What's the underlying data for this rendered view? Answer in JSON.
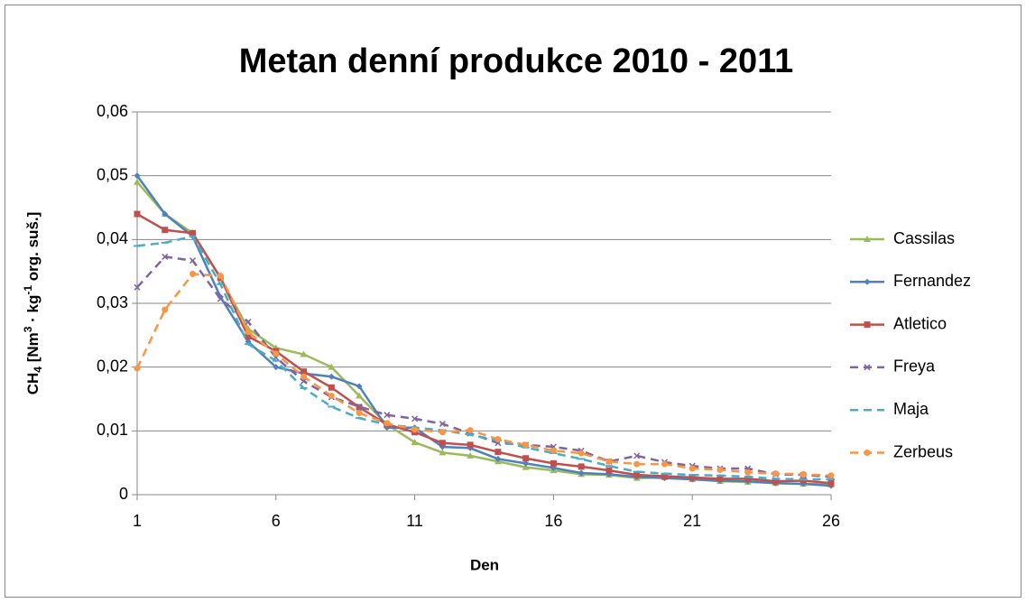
{
  "chart_data": {
    "type": "line",
    "title": "Metan denní produkce 2010 - 2011",
    "xlabel": "Den",
    "ylabel_parts": [
      "CH",
      "4",
      " [Nm",
      "3",
      " · kg",
      "-1",
      " org. suš.]"
    ],
    "x": [
      1,
      2,
      3,
      4,
      5,
      6,
      7,
      8,
      9,
      10,
      11,
      12,
      13,
      14,
      15,
      16,
      17,
      18,
      19,
      20,
      21,
      22,
      23,
      24,
      25,
      26
    ],
    "xlim": [
      1,
      26
    ],
    "xticks": [
      1,
      6,
      11,
      16,
      21,
      26
    ],
    "ylim": [
      0,
      0.06
    ],
    "yticks": [
      0,
      {
        "value": 0.01,
        "label": "0,01"
      },
      {
        "value": 0.02,
        "label": "0,02"
      },
      {
        "value": 0.03,
        "label": "0,03"
      },
      {
        "value": 0.04,
        "label": "0,04"
      },
      {
        "value": 0.05,
        "label": "0,05"
      },
      {
        "value": 0.06,
        "label": "0,06"
      }
    ],
    "grid": true,
    "legend": "right",
    "series": [
      {
        "name": "Cassilas",
        "color": "#9bbb59",
        "marker": "triangle",
        "dashed": false,
        "values": [
          0.049,
          0.044,
          0.041,
          0.034,
          0.026,
          0.023,
          0.022,
          0.02,
          0.0155,
          0.011,
          0.0082,
          0.0066,
          0.0061,
          0.0052,
          0.0043,
          0.0038,
          0.0032,
          0.0031,
          0.0026,
          0.0027,
          0.0024,
          0.0021,
          0.002,
          0.0018,
          0.0017,
          0.0016
        ]
      },
      {
        "name": "Fernandez",
        "color": "#4f81bd",
        "marker": "diamond",
        "dashed": false,
        "values": [
          0.05,
          0.044,
          0.0405,
          0.031,
          0.024,
          0.02,
          0.019,
          0.0185,
          0.017,
          0.0105,
          0.0105,
          0.0075,
          0.0073,
          0.0056,
          0.0049,
          0.0042,
          0.0034,
          0.0032,
          0.0028,
          0.0026,
          0.0024,
          0.0022,
          0.0021,
          0.0018,
          0.0017,
          0.0014
        ]
      },
      {
        "name": "Atletico",
        "color": "#c0504d",
        "marker": "square",
        "dashed": false,
        "values": [
          0.044,
          0.0415,
          0.041,
          0.034,
          0.0248,
          0.0225,
          0.0193,
          0.0168,
          0.0137,
          0.011,
          0.0098,
          0.0081,
          0.0078,
          0.0067,
          0.0057,
          0.0049,
          0.0044,
          0.0038,
          0.0031,
          0.0029,
          0.0027,
          0.0025,
          0.0025,
          0.0021,
          0.0022,
          0.0018
        ]
      },
      {
        "name": "Freya",
        "color": "#8064a2",
        "marker": "x",
        "dashed": true,
        "values": [
          0.0325,
          0.0373,
          0.0367,
          0.0307,
          0.0271,
          0.0215,
          0.0178,
          0.0153,
          0.0138,
          0.0125,
          0.0119,
          0.0111,
          0.0096,
          0.0081,
          0.0078,
          0.0075,
          0.0069,
          0.0052,
          0.0061,
          0.0051,
          0.0045,
          0.0041,
          0.0041,
          0.0032,
          0.0031,
          0.0028
        ]
      },
      {
        "name": "Maja",
        "color": "#4bacc6",
        "marker": "dash",
        "dashed": true,
        "values": [
          0.039,
          0.0395,
          0.0405,
          0.033,
          0.0236,
          0.021,
          0.0167,
          0.0138,
          0.012,
          0.011,
          0.0105,
          0.0101,
          0.0094,
          0.0085,
          0.0074,
          0.0065,
          0.0056,
          0.0045,
          0.0036,
          0.0033,
          0.0031,
          0.003,
          0.0028,
          0.0025,
          0.0024,
          0.0024
        ]
      },
      {
        "name": "Zerbeus",
        "color": "#f79646",
        "marker": "circle",
        "dashed": true,
        "values": [
          0.0198,
          0.029,
          0.0346,
          0.0343,
          0.0255,
          0.0221,
          0.0185,
          0.0155,
          0.0128,
          0.0112,
          0.0102,
          0.0098,
          0.0101,
          0.0087,
          0.0078,
          0.0069,
          0.0065,
          0.0052,
          0.0048,
          0.0048,
          0.0041,
          0.0039,
          0.0035,
          0.0033,
          0.0032,
          0.003
        ]
      }
    ]
  }
}
